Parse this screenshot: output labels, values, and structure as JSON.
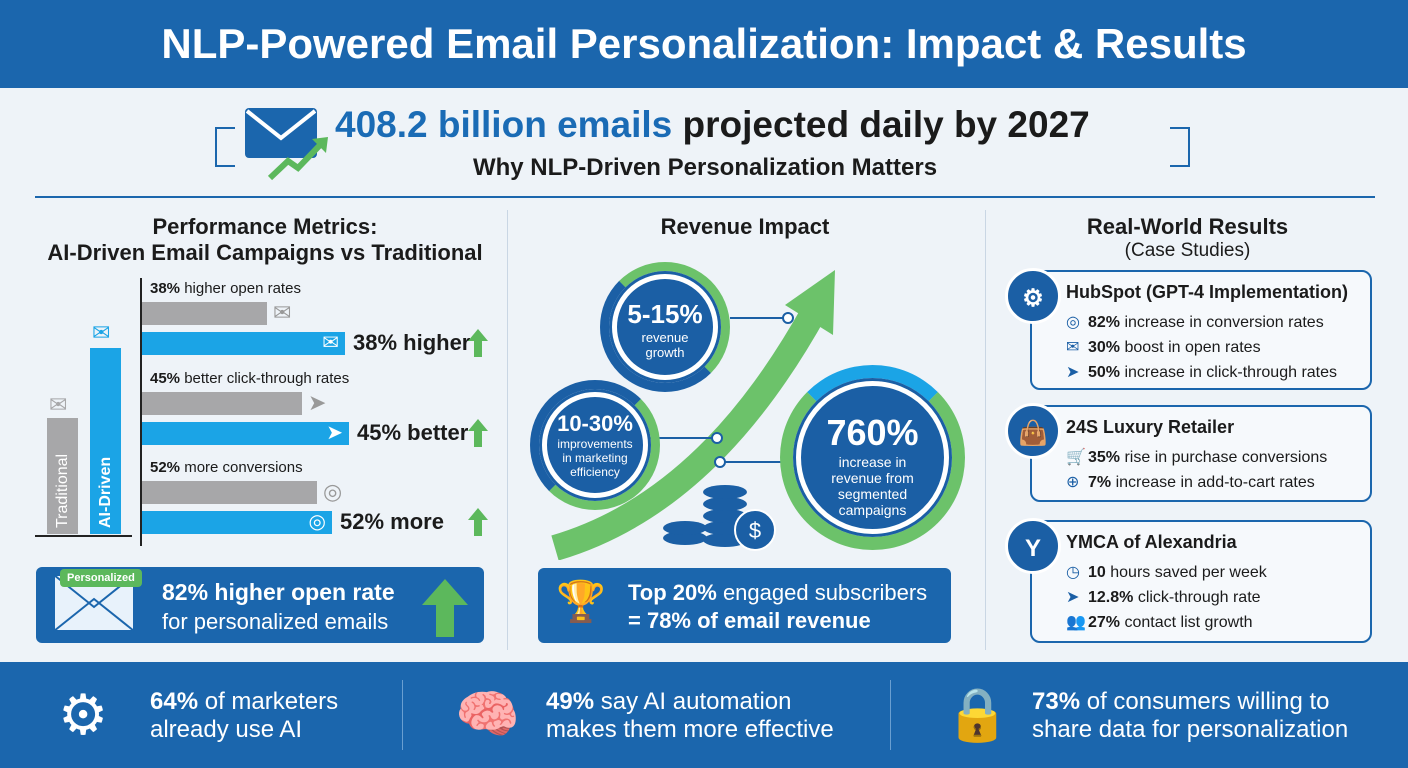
{
  "title": "NLP-Powered Email Personalization: Impact & Results",
  "headline": {
    "highlight": "408.2 billion emails",
    "rest": " projected daily by 2027",
    "subtitle": "Why NLP-Driven Personalization Matters"
  },
  "performance": {
    "title_line1": "Performance Metrics:",
    "title_line2": "AI-Driven Email Campaigns vs Traditional",
    "legend_bars": [
      {
        "label": "Traditional",
        "color": "#a7a7a9"
      },
      {
        "label": "AI-Driven",
        "color": "#1ba4e6"
      }
    ],
    "metrics": [
      {
        "pct": "38%",
        "text": " higher open rates",
        "result": "38% higher",
        "icon": "envelope-icon"
      },
      {
        "pct": "45%",
        "text": " better click-through rates",
        "result": "45% better",
        "icon": "cursor-icon"
      },
      {
        "pct": "52%",
        "text": " more conversions",
        "result": "52% more",
        "icon": "target-icon"
      }
    ],
    "callout": {
      "badge": "Personalized",
      "pct": "82%",
      "line1": " higher open rate",
      "line2": "for personalized emails"
    }
  },
  "revenue": {
    "title": "Revenue Impact",
    "bubbles": [
      {
        "value": "5-15%",
        "text": "revenue growth"
      },
      {
        "value": "10-30%",
        "text": "improvements in marketing efficiency"
      },
      {
        "value": "760%",
        "text": "increase in revenue from segmented campaigns"
      }
    ],
    "callout": {
      "line1_bold": "Top 20%",
      "line1": " engaged subscribers",
      "line2": "= 78% of email revenue"
    }
  },
  "results": {
    "title": "Real-World Results",
    "subtitle": "(Case Studies)",
    "cases": [
      {
        "name": "HubSpot (GPT-4 Implementation)",
        "icon": "hubspot-icon",
        "items": [
          {
            "icon": "target-icon",
            "glyph": "◎",
            "bold": "82%",
            "text": " increase in conversion rates"
          },
          {
            "icon": "envelope-icon",
            "glyph": "✉",
            "bold": "30%",
            "text": " boost in open rates"
          },
          {
            "icon": "cursor-icon",
            "glyph": "➤",
            "bold": "50%",
            "text": " increase in click-through rates"
          }
        ]
      },
      {
        "name": "24S Luxury Retailer",
        "icon": "shopping-bag-icon",
        "items": [
          {
            "icon": "cart-icon",
            "glyph": "🛒",
            "bold": "35%",
            "text": " rise in purchase conversions"
          },
          {
            "icon": "plus-circle-icon",
            "glyph": "⊕",
            "bold": "7%",
            "text": " increase in add-to-cart rates"
          }
        ]
      },
      {
        "name": "YMCA of Alexandria",
        "icon": "ymca-logo-icon",
        "logo_text": "the Y",
        "items": [
          {
            "icon": "clock-icon",
            "glyph": "◷",
            "bold": "10",
            "text": " hours saved per week"
          },
          {
            "icon": "cursor-icon",
            "glyph": "➤",
            "bold": "12.8%",
            "text": " click-through rate"
          },
          {
            "icon": "people-icon",
            "glyph": "👥",
            "bold": "27%",
            "text": " contact list growth"
          }
        ]
      }
    ]
  },
  "footer": [
    {
      "icon": "gear-check-icon",
      "bold": "64%",
      "line1": " of marketers",
      "line2": "already use AI"
    },
    {
      "icon": "brain-bolt-icon",
      "bold": "49%",
      "line1": " say AI automation",
      "line2": "makes them more effective"
    },
    {
      "icon": "lock-share-icon",
      "bold": "73%",
      "line1": " of consumers willing to",
      "line2": "share data for personalization"
    }
  ],
  "colors": {
    "primary": "#1b66ad",
    "ai_bar": "#1ba4e6",
    "traditional_bar": "#a7a7a9",
    "up_arrow": "#5cb85c"
  }
}
